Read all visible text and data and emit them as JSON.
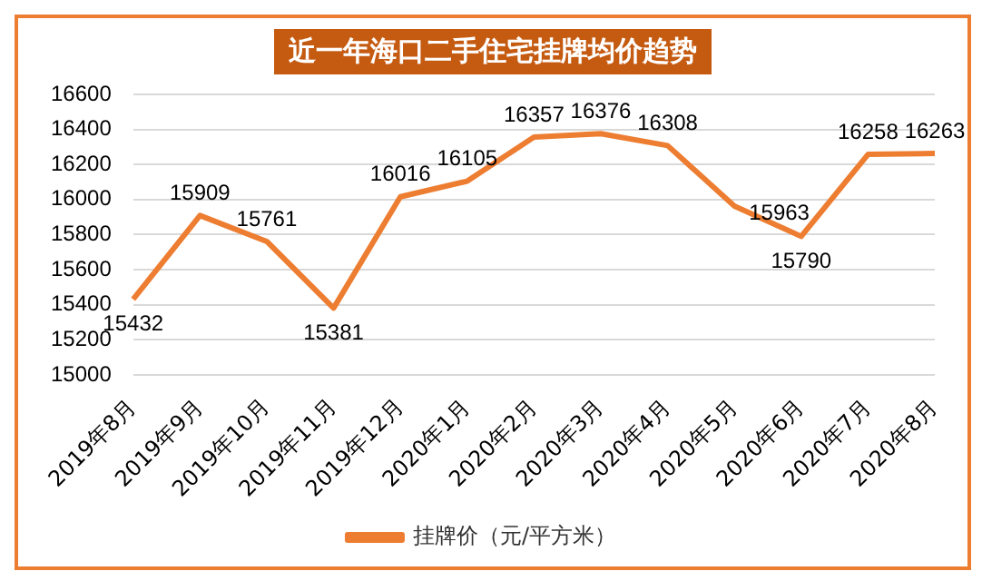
{
  "chart_data": {
    "type": "line",
    "title": "近一年海口二手住宅挂牌均价趋势",
    "categories": [
      "2019年8月",
      "2019年9月",
      "2019年10月",
      "2019年11月",
      "2019年12月",
      "2020年1月",
      "2020年2月",
      "2020年3月",
      "2020年4月",
      "2020年5月",
      "2020年6月",
      "2020年7月",
      "2020年8月"
    ],
    "series": [
      {
        "name": "挂牌价（元/平方米）",
        "color": "#ed7d31",
        "values": [
          15432,
          15909,
          15761,
          15381,
          16016,
          16105,
          16357,
          16376,
          16308,
          15963,
          15790,
          16258,
          16263
        ]
      }
    ],
    "ylim": [
      15000,
      16600
    ],
    "yticks": [
      15000,
      15200,
      15400,
      15600,
      15800,
      16000,
      16200,
      16400,
      16600
    ],
    "grid": "y",
    "legend": "bottom",
    "data_labels": true,
    "marker": "none",
    "line_style": "solid"
  }
}
